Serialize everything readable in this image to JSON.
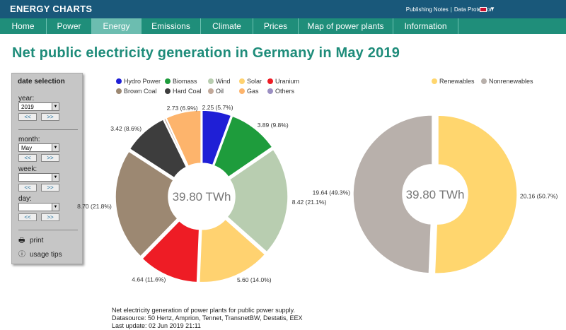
{
  "header": {
    "brand": "ENERGY CHARTS",
    "publishing_notes": "Publishing Notes",
    "data_protection": "Data Protection"
  },
  "nav": [
    "Home",
    "Power",
    "Energy",
    "Emissions",
    "Climate",
    "Prices",
    "Map of power plants",
    "Information"
  ],
  "nav_active": "Energy",
  "page_title": "Net public electricity generation in Germany in May 2019",
  "sidebar": {
    "heading": "date selection",
    "year_label": "year:",
    "year_value": "2019",
    "month_label": "month:",
    "month_value": "May",
    "week_label": "week:",
    "week_value": "",
    "day_label": "day:",
    "day_value": "",
    "prev": "<<",
    "next": ">>",
    "print": "print",
    "usage_tips": "usage tips"
  },
  "chart_data": [
    {
      "type": "pie",
      "center_label": "39.80 TWh",
      "legend": [
        "Hydro Power",
        "Biomass",
        "Wind",
        "Solar",
        "Uranium",
        "Brown Coal",
        "Hard Coal",
        "Oil",
        "Gas",
        "Others"
      ],
      "colors": {
        "Hydro Power": "#1f1fd6",
        "Biomass": "#1e9c3c",
        "Wind": "#b8cdb0",
        "Solar": "#ffd270",
        "Uranium": "#ee1c25",
        "Brown Coal": "#9c8872",
        "Hard Coal": "#3d3d3d",
        "Oil": "#c2a99a",
        "Gas": "#fdb46c",
        "Others": "#9b8fc2"
      },
      "slices": [
        {
          "name": "Hydro Power",
          "value": 2.25,
          "label": "2.25 (5.7%)"
        },
        {
          "name": "Biomass",
          "value": 3.89,
          "label": "3.89 (9.8%)"
        },
        {
          "name": "Wind",
          "value": 8.42,
          "label": "8.42 (21.1%)"
        },
        {
          "name": "Solar",
          "value": 5.6,
          "label": "5.60 (14.0%)"
        },
        {
          "name": "Uranium",
          "value": 4.64,
          "label": "4.64 (11.6%)"
        },
        {
          "name": "Brown Coal",
          "value": 8.7,
          "label": "8.70 (21.8%)"
        },
        {
          "name": "Hard Coal",
          "value": 3.42,
          "label": "3.42 (8.6%)"
        },
        {
          "name": "Oil",
          "value": 0.15,
          "label": ""
        },
        {
          "name": "Gas",
          "value": 2.73,
          "label": "2.73 (6.9%)"
        }
      ]
    },
    {
      "type": "pie",
      "center_label": "39.80 TWh",
      "legend": [
        "Renewables",
        "Nonrenewables"
      ],
      "colors": {
        "Renewables": "#ffd66e",
        "Nonrenewables": "#b8b0ab"
      },
      "slices": [
        {
          "name": "Renewables",
          "value": 20.16,
          "label": "20.16 (50.7%)"
        },
        {
          "name": "Nonrenewables",
          "value": 19.64,
          "label": "19.64 (49.3%)"
        }
      ]
    }
  ],
  "footer": {
    "line1": "Net electricity generation of power plants for public power supply.",
    "line2": "Datasource: 50 Hertz, Amprion, Tennet, TransnetBW, Destatis, EEX",
    "line3": "Last update: 02 Jun 2019 21:11"
  }
}
